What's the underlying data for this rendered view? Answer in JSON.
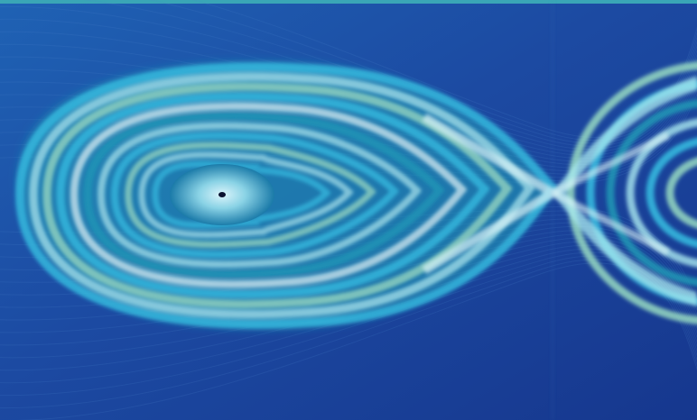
{
  "image": {
    "kind": "phase-portrait-artwork",
    "palette": {
      "background_outer": "#1b3a94",
      "background_mid": "#2060b0",
      "teal": "#1e9fb8",
      "cyan": "#38c6e6",
      "aqua_light": "#a9e9ef",
      "mint": "#9fe3c4",
      "pale": "#d9f3f6",
      "center_dot": "#0a1230"
    },
    "features": [
      "nested-orbits",
      "saddle-crossing",
      "center-point"
    ]
  }
}
